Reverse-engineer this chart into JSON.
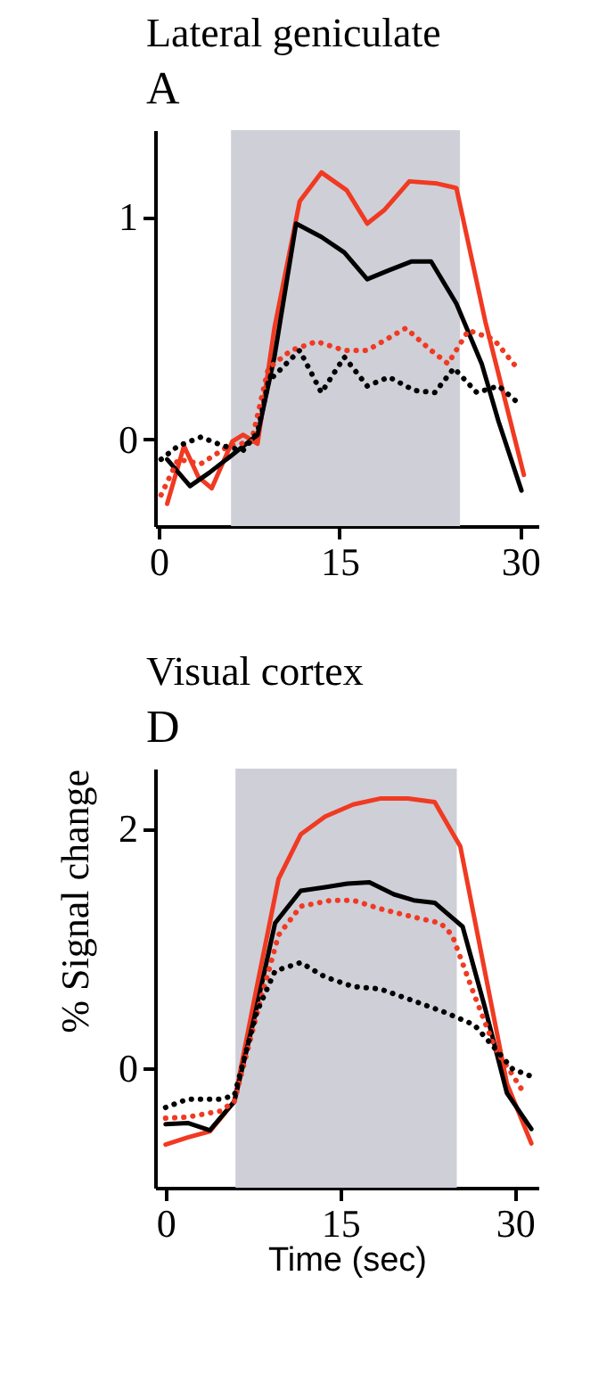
{
  "chart_data": [
    {
      "type": "line",
      "title": "Lateral geniculate",
      "subtitle": "A",
      "xlim": [
        -0.3,
        31.5
      ],
      "ylim": [
        -0.39,
        1.39
      ],
      "xticks": [
        0,
        15,
        30
      ],
      "yticks": [
        0,
        1
      ],
      "grid": false,
      "bands": [
        {
          "axis": "x",
          "from": 6,
          "to": 25,
          "color": "#cfcfd8"
        }
      ],
      "series": [
        {
          "color": "#f03a22",
          "line_style": "solid",
          "x": [
            0.7,
            2.1,
            3.3,
            4.4,
            6.1,
            7,
            8.2,
            9.6,
            11.7,
            13.5,
            15.6,
            17.3,
            18.7,
            20.8,
            23.1,
            24.7,
            27.1,
            30.3
          ],
          "values": [
            -0.29,
            -0.03,
            -0.17,
            -0.22,
            -0.01,
            0.02,
            -0.02,
            0.5,
            1.07,
            1.2,
            1.12,
            0.97,
            1.03,
            1.16,
            1.15,
            1.13,
            0.53,
            -0.16
          ]
        },
        {
          "color": "#000000",
          "line_style": "solid",
          "x": [
            0.7,
            2.6,
            4.2,
            6.1,
            8.2,
            9.6,
            11.4,
            13.5,
            15.4,
            17.3,
            19.1,
            21,
            22.6,
            24.7,
            26.8,
            28.2,
            30.1
          ],
          "values": [
            -0.09,
            -0.21,
            -0.15,
            -0.07,
            0.02,
            0.37,
            0.97,
            0.91,
            0.84,
            0.72,
            0.76,
            0.8,
            0.8,
            0.61,
            0.34,
            0.08,
            -0.23
          ]
        },
        {
          "color": "#f03a22",
          "line_style": "dotted",
          "x": [
            0.2,
            1.6,
            3.5,
            5.8,
            7.7,
            9.1,
            11,
            13.1,
            15.4,
            17.3,
            18.9,
            20.5,
            22.6,
            24,
            25.7,
            27.8,
            29.6
          ],
          "values": [
            -0.25,
            -0.09,
            -0.11,
            -0.03,
            -0.01,
            0.32,
            0.4,
            0.44,
            0.4,
            0.4,
            0.45,
            0.5,
            0.4,
            0.34,
            0.49,
            0.45,
            0.33
          ]
        },
        {
          "color": "#000000",
          "line_style": "dotted",
          "x": [
            0.2,
            1.6,
            3.5,
            5.4,
            7,
            8.2,
            9.1,
            11.7,
            13.5,
            15.4,
            17.3,
            19.1,
            21.2,
            22.9,
            24.5,
            26.4,
            28.2,
            29.9
          ],
          "values": [
            -0.09,
            -0.03,
            0.01,
            -0.03,
            -0.05,
            0.03,
            0.26,
            0.4,
            0.21,
            0.37,
            0.24,
            0.28,
            0.22,
            0.21,
            0.32,
            0.21,
            0.24,
            0.16
          ]
        }
      ]
    },
    {
      "type": "line",
      "title": "Visual cortex",
      "subtitle": "D",
      "xlabel": "Time (sec)",
      "ylabel": "% Signal change",
      "xlim": [
        -0.9,
        32
      ],
      "ylim": [
        -1,
        2.5
      ],
      "xticks": [
        0,
        15,
        30
      ],
      "yticks": [
        0,
        2
      ],
      "grid": false,
      "bands": [
        {
          "axis": "x",
          "from": 6,
          "to": 25,
          "color": "#cfcfd8"
        }
      ],
      "series": [
        {
          "color": "#f03a22",
          "line_style": "solid",
          "x": [
            0,
            1.9,
            3.8,
            5.9,
            7.8,
            9.7,
            11.6,
            13.7,
            16.1,
            18.4,
            20.8,
            23.1,
            25.3,
            27.4,
            29.3,
            31.4
          ],
          "values": [
            -0.64,
            -0.58,
            -0.53,
            -0.28,
            0.66,
            1.58,
            1.95,
            2.1,
            2.2,
            2.25,
            2.25,
            2.22,
            1.85,
            0.81,
            -0.13,
            -0.63
          ]
        },
        {
          "color": "#000000",
          "line_style": "solid",
          "x": [
            0,
            1.9,
            3.8,
            5.9,
            7.6,
            9.4,
            11.6,
            13.7,
            15.6,
            17.5,
            19.6,
            21.3,
            23.1,
            25.5,
            27.4,
            29.3,
            31.4
          ],
          "values": [
            -0.47,
            -0.46,
            -0.52,
            -0.28,
            0.41,
            1.21,
            1.48,
            1.51,
            1.54,
            1.55,
            1.45,
            1.4,
            1.38,
            1.18,
            0.51,
            -0.21,
            -0.51
          ]
        },
        {
          "color": "#f03a22",
          "line_style": "dotted",
          "x": [
            0,
            1.9,
            4.7,
            5.9,
            8,
            9.7,
            11.6,
            14.2,
            16.1,
            18.4,
            21.3,
            23.6,
            24.6,
            26.5,
            28.3,
            29.8,
            30.9
          ],
          "values": [
            -0.42,
            -0.41,
            -0.36,
            -0.28,
            0.51,
            1.11,
            1.35,
            1.4,
            1.4,
            1.33,
            1.26,
            1.21,
            1.11,
            0.61,
            0.16,
            -0.06,
            -0.23
          ]
        },
        {
          "color": "#000000",
          "line_style": "dotted",
          "x": [
            0,
            1.9,
            4.7,
            5.9,
            7.8,
            9.4,
            11.6,
            13.7,
            16.1,
            18.4,
            21.3,
            24.1,
            26.5,
            28.3,
            29.8,
            31.4
          ],
          "values": [
            -0.33,
            -0.26,
            -0.26,
            -0.23,
            0.46,
            0.81,
            0.88,
            0.76,
            0.68,
            0.66,
            0.56,
            0.46,
            0.36,
            0.16,
            -0.01,
            -0.07
          ]
        }
      ]
    }
  ]
}
